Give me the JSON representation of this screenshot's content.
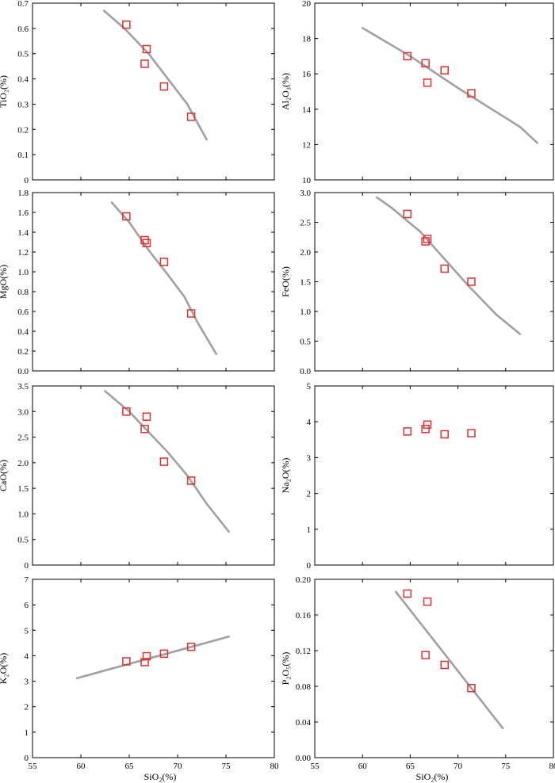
{
  "figure": {
    "x_label_left": "SiO₂(%)",
    "x_label_right": "SiO₂(%)"
  },
  "chart_data": [
    {
      "id": "tio2",
      "type": "scatter",
      "ylabel": "TiO₂(%)",
      "xlim": [
        55,
        80
      ],
      "ylim": [
        0,
        0.7
      ],
      "yticks": [
        "0",
        "0.1",
        "0.2",
        "0.3",
        "0.4",
        "0.5",
        "0.6",
        "0.7"
      ],
      "trend": [
        [
          62.4,
          0.67
        ],
        [
          64.5,
          0.6
        ],
        [
          67,
          0.5
        ],
        [
          69,
          0.4
        ],
        [
          71,
          0.3
        ],
        [
          73,
          0.16
        ]
      ],
      "points": [
        [
          64.7,
          0.615
        ],
        [
          66.8,
          0.518
        ],
        [
          66.6,
          0.46
        ],
        [
          68.6,
          0.37
        ],
        [
          71.4,
          0.25
        ]
      ],
      "marker_color": "#e03030",
      "trend_color": "#a0a0a0"
    },
    {
      "id": "al2o3",
      "type": "scatter",
      "ylabel": "Al₂O₃(%)",
      "xlim": [
        55,
        80
      ],
      "ylim": [
        10,
        20
      ],
      "yticks": [
        "10",
        "12",
        "14",
        "16",
        "18",
        "20"
      ],
      "trend": [
        [
          60,
          18.6
        ],
        [
          65,
          17
        ],
        [
          70,
          15.2
        ],
        [
          76.5,
          13
        ],
        [
          78.3,
          12.1
        ]
      ],
      "points": [
        [
          64.7,
          17
        ],
        [
          66.6,
          16.6
        ],
        [
          66.8,
          15.5
        ],
        [
          68.6,
          16.2
        ],
        [
          71.4,
          14.9
        ]
      ],
      "marker_color": "#e03030",
      "trend_color": "#a0a0a0"
    },
    {
      "id": "mgo",
      "type": "scatter",
      "ylabel": "MgO(%)",
      "xlim": [
        55,
        80
      ],
      "ylim": [
        0,
        1.8
      ],
      "yticks": [
        "0.0",
        "0.2",
        "0.4",
        "0.6",
        "0.8",
        "1.0",
        "1.2",
        "1.4",
        "1.6",
        "1.8"
      ],
      "trend": [
        [
          63.2,
          1.7
        ],
        [
          65,
          1.5
        ],
        [
          67,
          1.22
        ],
        [
          69,
          0.97
        ],
        [
          70.7,
          0.75
        ],
        [
          72,
          0.5
        ],
        [
          74,
          0.17
        ]
      ],
      "points": [
        [
          64.7,
          1.56
        ],
        [
          66.6,
          1.32
        ],
        [
          66.8,
          1.29
        ],
        [
          68.6,
          1.1
        ],
        [
          71.4,
          0.58
        ]
      ],
      "marker_color": "#e03030",
      "trend_color": "#a0a0a0"
    },
    {
      "id": "feo",
      "type": "scatter",
      "ylabel": "FeO(%)",
      "xlim": [
        55,
        80
      ],
      "ylim": [
        0,
        3.0
      ],
      "yticks": [
        "0.0",
        "0.5",
        "1.0",
        "1.5",
        "2.0",
        "2.5",
        "3.0"
      ],
      "trend": [
        [
          61.5,
          2.92
        ],
        [
          63,
          2.75
        ],
        [
          66,
          2.35
        ],
        [
          68.5,
          1.9
        ],
        [
          71,
          1.45
        ],
        [
          74,
          0.95
        ],
        [
          76.5,
          0.62
        ]
      ],
      "points": [
        [
          64.7,
          2.64
        ],
        [
          66.6,
          2.18
        ],
        [
          66.8,
          2.22
        ],
        [
          68.6,
          1.72
        ],
        [
          71.4,
          1.5
        ]
      ],
      "marker_color": "#e03030",
      "trend_color": "#a0a0a0"
    },
    {
      "id": "cao",
      "type": "scatter",
      "ylabel": "CaO(%)",
      "xlim": [
        55,
        80
      ],
      "ylim": [
        0,
        3.5
      ],
      "yticks": [
        "0",
        "0.5",
        "1.0",
        "1.5",
        "2.0",
        "2.5",
        "3.0",
        "3.5"
      ],
      "trend": [
        [
          62.5,
          3.4
        ],
        [
          65,
          3.0
        ],
        [
          67,
          2.6
        ],
        [
          69,
          2.2
        ],
        [
          71,
          1.75
        ],
        [
          73,
          1.2
        ],
        [
          75.3,
          0.65
        ]
      ],
      "points": [
        [
          64.7,
          3.0
        ],
        [
          66.6,
          2.66
        ],
        [
          66.8,
          2.9
        ],
        [
          68.6,
          2.02
        ],
        [
          71.4,
          1.65
        ]
      ],
      "marker_color": "#e03030",
      "trend_color": "#a0a0a0"
    },
    {
      "id": "na2o",
      "type": "scatter",
      "ylabel": "Na₂O(%)",
      "xlim": [
        55,
        80
      ],
      "ylim": [
        0,
        5
      ],
      "yticks": [
        "0",
        "1",
        "2",
        "3",
        "4",
        "5"
      ],
      "trend": [],
      "points": [
        [
          64.7,
          3.73
        ],
        [
          66.6,
          3.8
        ],
        [
          66.8,
          3.92
        ],
        [
          68.6,
          3.65
        ],
        [
          71.4,
          3.68
        ]
      ],
      "marker_color": "#e03030",
      "trend_color": "#a0a0a0"
    },
    {
      "id": "k2o",
      "type": "scatter",
      "ylabel": "K₂O(%)",
      "xlim": [
        55,
        80
      ],
      "ylim": [
        0,
        7
      ],
      "yticks": [
        "0",
        "1",
        "2",
        "3",
        "4",
        "5",
        "6",
        "7"
      ],
      "trend": [
        [
          59.6,
          3.12
        ],
        [
          75.3,
          4.75
        ]
      ],
      "points": [
        [
          64.7,
          3.78
        ],
        [
          66.6,
          3.75
        ],
        [
          66.8,
          3.98
        ],
        [
          68.6,
          4.08
        ],
        [
          71.4,
          4.35
        ]
      ],
      "marker_color": "#e03030",
      "trend_color": "#a0a0a0"
    },
    {
      "id": "p2o5",
      "type": "scatter",
      "ylabel": "P₂O₅(%)",
      "xlim": [
        55,
        80
      ],
      "ylim": [
        0,
        0.2
      ],
      "yticks": [
        "0.00",
        "0.04",
        "0.08",
        "0.12",
        "0.16",
        "0.20"
      ],
      "trend": [
        [
          63.5,
          0.186
        ],
        [
          74.7,
          0.033
        ]
      ],
      "points": [
        [
          64.7,
          0.184
        ],
        [
          66.6,
          0.115
        ],
        [
          66.8,
          0.175
        ],
        [
          68.6,
          0.104
        ],
        [
          71.4,
          0.078
        ]
      ],
      "marker_color": "#e03030",
      "trend_color": "#a0a0a0"
    }
  ],
  "x_axis": {
    "ticks": [
      "55",
      "60",
      "65",
      "70",
      "75",
      "80"
    ]
  }
}
